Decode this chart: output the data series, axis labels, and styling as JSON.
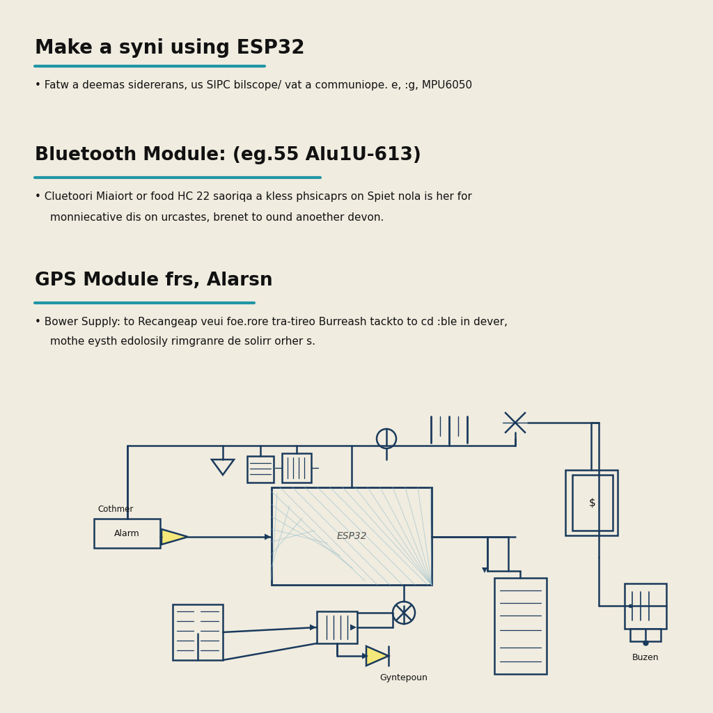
{
  "background_color": "#f0ece0",
  "text_color": "#111111",
  "accent_color": "#2196a6",
  "line_color": "#1a3a5c",
  "title1": "Make a syni using ESP32",
  "bullet1": "Fatw a deemas sidererans, us SIPC bilscope/ vat a communiope. e, :g, MPU6050",
  "title2": "Bluetooth Module: (eg.55 Alu1U-613)",
  "bullet2a": "Cluetoori Miaiort or food HC 22 saoriqa a kless phsicaprs on Spiet nola is her for",
  "bullet2b": "monniecative dis on urcastes, brenet to ound anoether devon.",
  "title3": "GPS Module frs, Alarsn",
  "bullet3a": "Bower Supply: to Recangeap veui foe.rore tra-tireo Burreash tackto to cd :ble in dever,",
  "bullet3b": "mothe eysth edolosily rimgranre de solirr orher s.",
  "diagram_label_alarm": "Alarm",
  "diagram_label_cothmer": "Cothmer",
  "diagram_label_gyntepoun": "Gyntepoun",
  "diagram_label_buzen": "Buzen",
  "diagram_label_esp32": "ESP32"
}
